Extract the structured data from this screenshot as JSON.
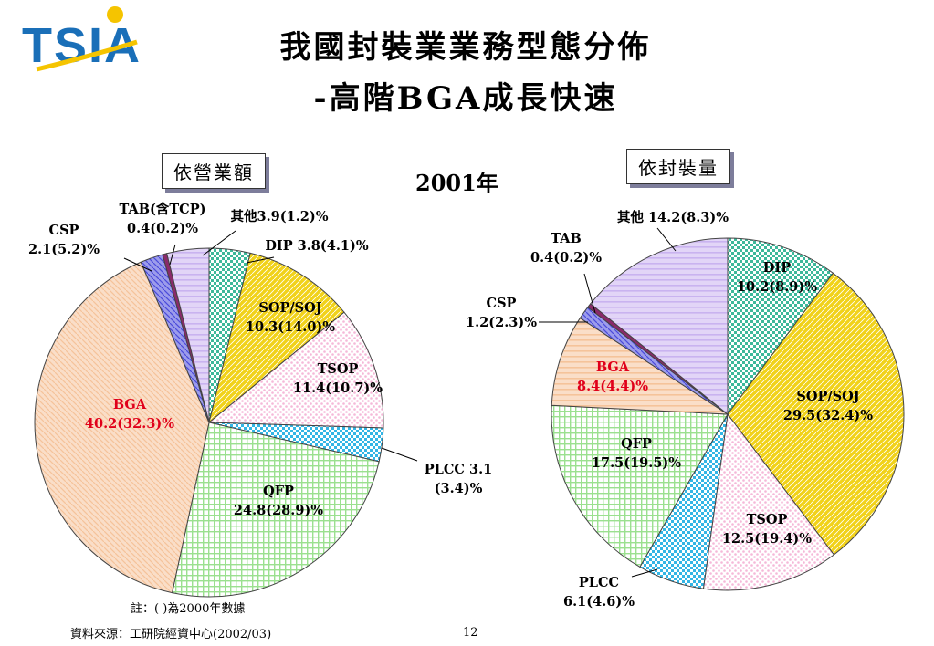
{
  "logo": {
    "text": "TSIA"
  },
  "title": {
    "line1": "我國封裝業業務型態分佈",
    "line2": "-高階BGA成長快速"
  },
  "left_box_label": "依營業額",
  "right_box_label": "依封裝量",
  "year_label": "2001年",
  "note": "註：( )為2000年數據",
  "source": "資料來源：工研院經資中心(2002/03)",
  "page_number": "12",
  "colors": {
    "logo_blue": "#1a6fb8",
    "logo_yellow": "#f5c400",
    "highlight_red": "#e0001a",
    "box_shadow": "#7d7d9b"
  },
  "chart_data": [
    {
      "type": "pie",
      "title": "依營業額",
      "unit": "%",
      "series": [
        {
          "label": "DIP",
          "value": 3.8,
          "value_2000": 4.1,
          "color": "#3cb89a",
          "pattern": "checker",
          "text_lines": [
            "DIP 3.8(4.1)%"
          ]
        },
        {
          "label": "SOP/SOJ",
          "value": 10.3,
          "value_2000": 14.0,
          "color": "#f1d21a",
          "pattern": "diag",
          "text_lines": [
            "SOP/SOJ",
            "10.3(14.0)%"
          ]
        },
        {
          "label": "TSOP",
          "value": 11.4,
          "value_2000": 10.7,
          "color": "#f5b8d8",
          "pattern": "dots",
          "text_lines": [
            "TSOP",
            "11.4(10.7)%"
          ]
        },
        {
          "label": "PLCC",
          "value": 3.1,
          "value_2000": 3.4,
          "color": "#33b5e5",
          "pattern": "checker",
          "text_lines": [
            "PLCC 3.1",
            "(3.4)%"
          ]
        },
        {
          "label": "QFP",
          "value": 24.8,
          "value_2000": 28.9,
          "color": "#9be08f",
          "pattern": "grid",
          "text_lines": [
            "QFP",
            "24.8(28.9)%"
          ]
        },
        {
          "label": "BGA",
          "value": 40.2,
          "value_2000": 32.3,
          "color": "#f5c39a",
          "pattern": "hatch",
          "highlight": true,
          "text_lines": [
            "BGA",
            "40.2(32.3)%"
          ]
        },
        {
          "label": "CSP",
          "value": 2.1,
          "value_2000": 5.2,
          "color": "#4a4adb",
          "pattern": "hatch",
          "text_lines": [
            "CSP",
            "2.1(5.2)%"
          ]
        },
        {
          "label": "TAB(含TCP)",
          "value": 0.4,
          "value_2000": 0.2,
          "color": "#8a2a6a",
          "pattern": "solid",
          "text_lines": [
            "TAB(含TCP)",
            "0.4(0.2)%"
          ]
        },
        {
          "label": "其他",
          "value": 3.9,
          "value_2000": 1.2,
          "color": "#c9b3f0",
          "pattern": "hlines",
          "text_lines": [
            "其他3.9(1.2)%"
          ]
        }
      ]
    },
    {
      "type": "pie",
      "title": "依封裝量",
      "unit": "%",
      "series": [
        {
          "label": "DIP",
          "value": 10.2,
          "value_2000": 8.9,
          "color": "#3cb89a",
          "pattern": "checker",
          "text_lines": [
            "DIP",
            "10.2(8.9)%"
          ]
        },
        {
          "label": "SOP/SOJ",
          "value": 29.5,
          "value_2000": 32.4,
          "color": "#f1d21a",
          "pattern": "diag",
          "text_lines": [
            "SOP/SOJ",
            "29.5(32.4)%"
          ]
        },
        {
          "label": "TSOP",
          "value": 12.5,
          "value_2000": 19.4,
          "color": "#f5b8d8",
          "pattern": "dots",
          "text_lines": [
            "TSOP",
            "12.5(19.4)%"
          ]
        },
        {
          "label": "PLCC",
          "value": 6.1,
          "value_2000": 4.6,
          "color": "#33b5e5",
          "pattern": "checker",
          "text_lines": [
            "PLCC",
            "6.1(4.6)%"
          ]
        },
        {
          "label": "QFP",
          "value": 17.5,
          "value_2000": 19.5,
          "color": "#9be08f",
          "pattern": "grid",
          "text_lines": [
            "QFP",
            "17.5(19.5)%"
          ]
        },
        {
          "label": "BGA",
          "value": 8.4,
          "value_2000": 4.4,
          "color": "#f5c39a",
          "pattern": "hlines",
          "highlight": true,
          "text_lines": [
            "BGA",
            "8.4(4.4)%"
          ]
        },
        {
          "label": "CSP",
          "value": 1.2,
          "value_2000": 2.3,
          "color": "#4a4adb",
          "pattern": "hatch",
          "text_lines": [
            "CSP",
            "1.2(2.3)%"
          ]
        },
        {
          "label": "TAB",
          "value": 0.4,
          "value_2000": 0.2,
          "color": "#8a2a6a",
          "pattern": "solid",
          "text_lines": [
            "TAB",
            "0.4(0.2)%"
          ]
        },
        {
          "label": "其他",
          "value": 14.2,
          "value_2000": 8.3,
          "color": "#c9b3f0",
          "pattern": "hlines",
          "text_lines": [
            "其他 14.2(8.3)%"
          ]
        }
      ]
    }
  ]
}
